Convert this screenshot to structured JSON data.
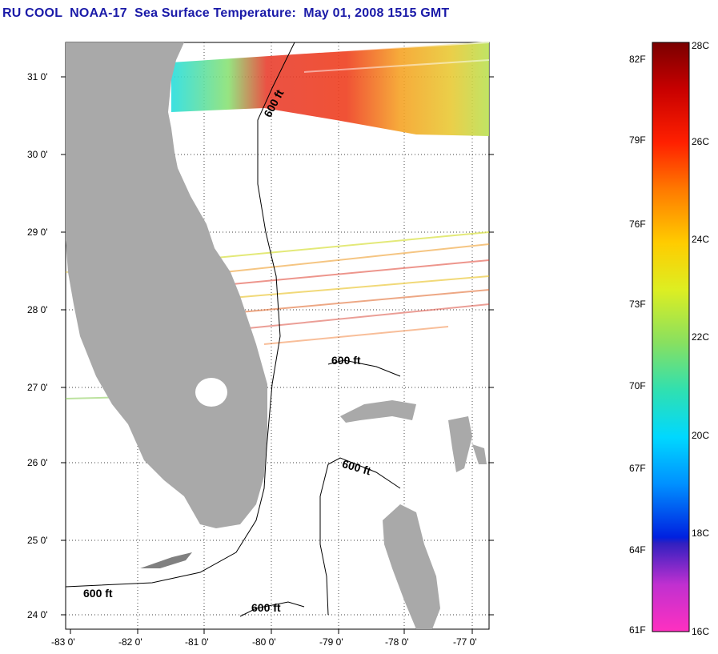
{
  "title": "RU COOL  NOAA-17  Sea Surface Temperature:  May 01, 2008 1515 GMT",
  "map": {
    "lon_ticks": [
      "-83 0'",
      "-82 0'",
      "-81 0'",
      "-80 0'",
      "-79 0'",
      "-78 0'",
      "-77 0'"
    ],
    "lat_ticks": [
      "31 0'",
      "30 0'",
      "29 0'",
      "28 0'",
      "27 0'",
      "26 0'",
      "25 0'",
      "24 0'"
    ],
    "contour_labels": [
      "600 ft",
      "600 ft",
      "600 ft",
      "600 ft",
      "600 ft"
    ],
    "land_color": "#a9a9a9"
  },
  "colorbar": {
    "f_labels": [
      "82F",
      "79F",
      "76F",
      "73F",
      "70F",
      "67F",
      "64F",
      "61F"
    ],
    "c_labels": [
      "28C",
      "26C",
      "24C",
      "22C",
      "20C",
      "18C",
      "16C"
    ]
  }
}
